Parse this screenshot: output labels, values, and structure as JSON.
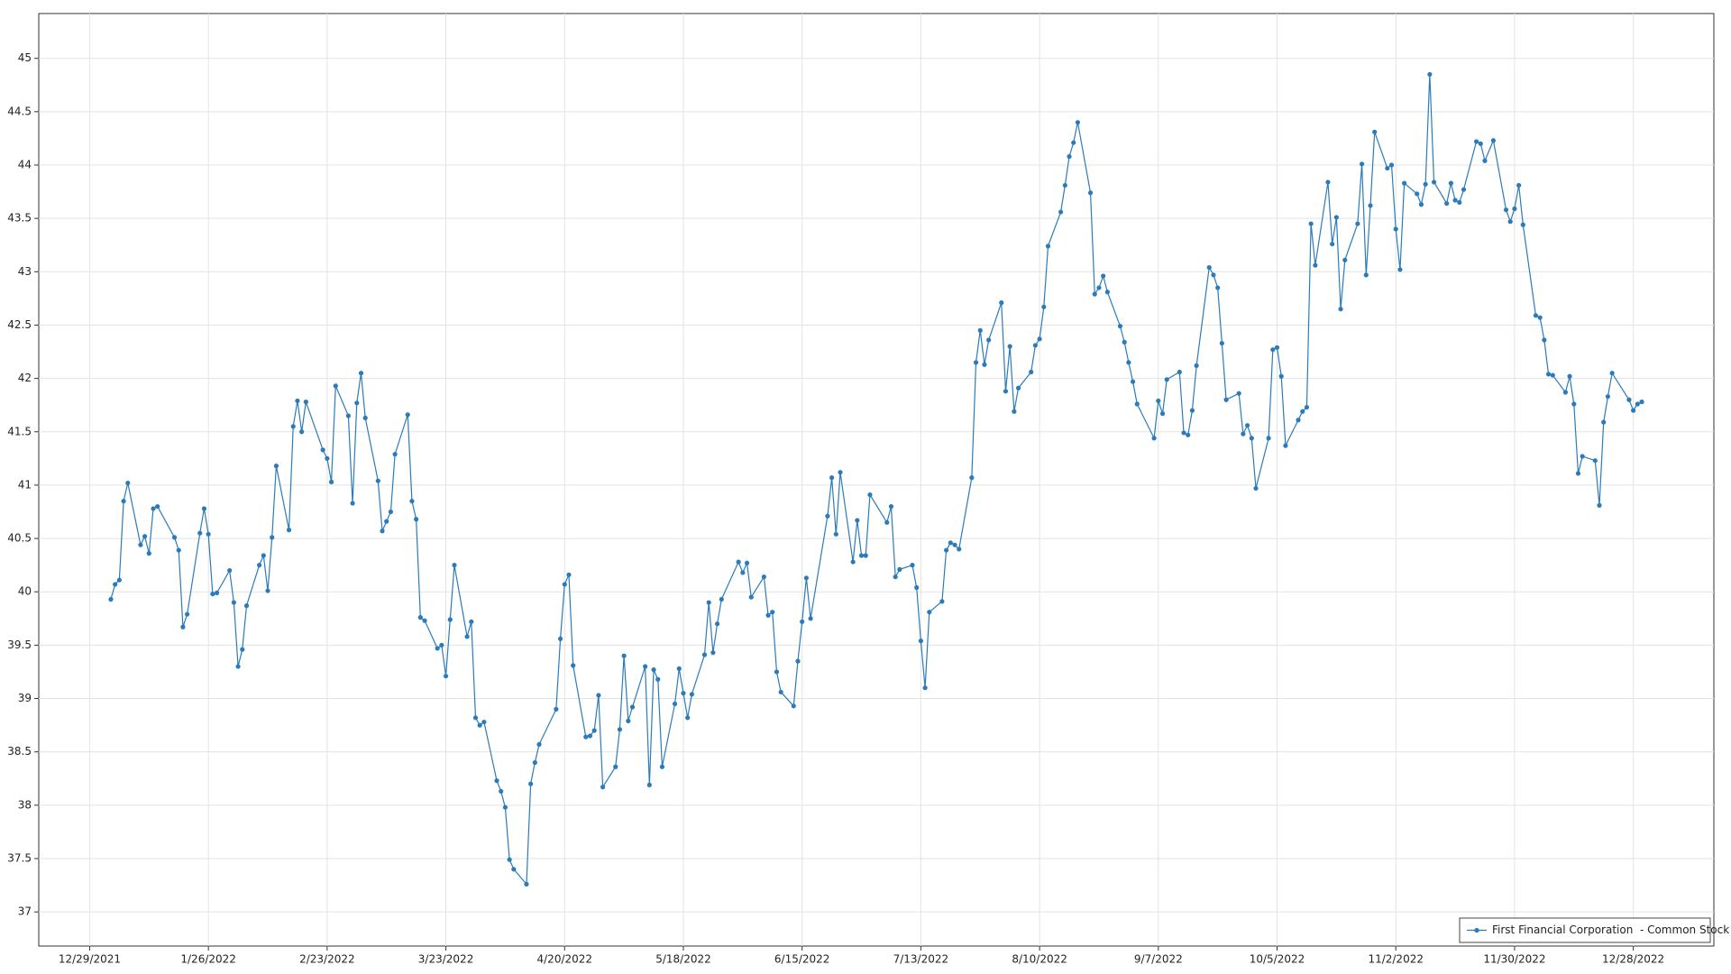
{
  "chart_data": {
    "type": "line",
    "x": [
      "1/3/2022",
      "1/4/2022",
      "1/5/2022",
      "1/6/2022",
      "1/7/2022",
      "1/10/2022",
      "1/11/2022",
      "1/12/2022",
      "1/13/2022",
      "1/14/2022",
      "1/18/2022",
      "1/19/2022",
      "1/20/2022",
      "1/21/2022",
      "1/24/2022",
      "1/25/2022",
      "1/26/2022",
      "1/27/2022",
      "1/28/2022",
      "1/31/2022",
      "2/1/2022",
      "2/2/2022",
      "2/3/2022",
      "2/4/2022",
      "2/7/2022",
      "2/8/2022",
      "2/9/2022",
      "2/10/2022",
      "2/11/2022",
      "2/14/2022",
      "2/15/2022",
      "2/16/2022",
      "2/17/2022",
      "2/18/2022",
      "2/22/2022",
      "2/23/2022",
      "2/24/2022",
      "2/25/2022",
      "2/28/2022",
      "3/1/2022",
      "3/2/2022",
      "3/3/2022",
      "3/4/2022",
      "3/7/2022",
      "3/8/2022",
      "3/9/2022",
      "3/10/2022",
      "3/11/2022",
      "3/14/2022",
      "3/15/2022",
      "3/16/2022",
      "3/17/2022",
      "3/18/2022",
      "3/21/2022",
      "3/22/2022",
      "3/23/2022",
      "3/24/2022",
      "3/25/2022",
      "3/28/2022",
      "3/29/2022",
      "3/30/2022",
      "3/31/2022",
      "4/1/2022",
      "4/4/2022",
      "4/5/2022",
      "4/6/2022",
      "4/7/2022",
      "4/8/2022",
      "4/11/2022",
      "4/12/2022",
      "4/13/2022",
      "4/14/2022",
      "4/18/2022",
      "4/19/2022",
      "4/20/2022",
      "4/21/2022",
      "4/22/2022",
      "4/25/2022",
      "4/26/2022",
      "4/27/2022",
      "4/28/2022",
      "4/29/2022",
      "5/2/2022",
      "5/3/2022",
      "5/4/2022",
      "5/5/2022",
      "5/6/2022",
      "5/9/2022",
      "5/10/2022",
      "5/11/2022",
      "5/12/2022",
      "5/13/2022",
      "5/16/2022",
      "5/17/2022",
      "5/18/2022",
      "5/19/2022",
      "5/20/2022",
      "5/23/2022",
      "5/24/2022",
      "5/25/2022",
      "5/26/2022",
      "5/27/2022",
      "5/31/2022",
      "6/1/2022",
      "6/2/2022",
      "6/3/2022",
      "6/6/2022",
      "6/7/2022",
      "6/8/2022",
      "6/9/2022",
      "6/10/2022",
      "6/13/2022",
      "6/14/2022",
      "6/15/2022",
      "6/16/2022",
      "6/17/2022",
      "6/21/2022",
      "6/22/2022",
      "6/23/2022",
      "6/24/2022",
      "6/27/2022",
      "6/28/2022",
      "6/29/2022",
      "6/30/2022",
      "7/1/2022",
      "7/5/2022",
      "7/6/2022",
      "7/7/2022",
      "7/8/2022",
      "7/11/2022",
      "7/12/2022",
      "7/13/2022",
      "7/14/2022",
      "7/15/2022",
      "7/18/2022",
      "7/19/2022",
      "7/20/2022",
      "7/21/2022",
      "7/22/2022",
      "7/25/2022",
      "7/26/2022",
      "7/27/2022",
      "7/28/2022",
      "7/29/2022",
      "8/1/2022",
      "8/2/2022",
      "8/3/2022",
      "8/4/2022",
      "8/5/2022",
      "8/8/2022",
      "8/9/2022",
      "8/10/2022",
      "8/11/2022",
      "8/12/2022",
      "8/15/2022",
      "8/16/2022",
      "8/17/2022",
      "8/18/2022",
      "8/19/2022",
      "8/22/2022",
      "8/23/2022",
      "8/24/2022",
      "8/25/2022",
      "8/26/2022",
      "8/29/2022",
      "8/30/2022",
      "8/31/2022",
      "9/1/2022",
      "9/2/2022",
      "9/6/2022",
      "9/7/2022",
      "9/8/2022",
      "9/9/2022",
      "9/12/2022",
      "9/13/2022",
      "9/14/2022",
      "9/15/2022",
      "9/16/2022",
      "9/19/2022",
      "9/20/2022",
      "9/21/2022",
      "9/22/2022",
      "9/23/2022",
      "9/26/2022",
      "9/27/2022",
      "9/28/2022",
      "9/29/2022",
      "9/30/2022",
      "10/3/2022",
      "10/4/2022",
      "10/5/2022",
      "10/6/2022",
      "10/7/2022",
      "10/10/2022",
      "10/11/2022",
      "10/12/2022",
      "10/13/2022",
      "10/14/2022",
      "10/17/2022",
      "10/18/2022",
      "10/19/2022",
      "10/20/2022",
      "10/21/2022",
      "10/24/2022",
      "10/25/2022",
      "10/26/2022",
      "10/27/2022",
      "10/28/2022",
      "10/31/2022",
      "11/1/2022",
      "11/2/2022",
      "11/3/2022",
      "11/4/2022",
      "11/7/2022",
      "11/8/2022",
      "11/9/2022",
      "11/10/2022",
      "11/11/2022",
      "11/14/2022",
      "11/15/2022",
      "11/16/2022",
      "11/17/2022",
      "11/18/2022",
      "11/21/2022",
      "11/22/2022",
      "11/23/2022",
      "11/25/2022",
      "11/28/2022",
      "11/29/2022",
      "11/30/2022",
      "12/1/2022",
      "12/2/2022",
      "12/5/2022",
      "12/6/2022",
      "12/7/2022",
      "12/8/2022",
      "12/9/2022",
      "12/12/2022",
      "12/13/2022",
      "12/14/2022",
      "12/15/2022",
      "12/16/2022",
      "12/19/2022",
      "12/20/2022",
      "12/21/2022",
      "12/22/2022",
      "12/23/2022",
      "12/27/2022",
      "12/28/2022",
      "12/29/2022",
      "12/30/2022"
    ],
    "series": [
      {
        "name": "First Financial Corporation  - Common Stock",
        "color": "#2b7bba",
        "values": [
          39.93,
          40.07,
          40.11,
          40.85,
          41.02,
          40.44,
          40.52,
          40.36,
          40.78,
          40.8,
          40.51,
          40.39,
          39.67,
          39.79,
          40.55,
          40.78,
          40.54,
          39.98,
          39.99,
          40.2,
          39.9,
          39.3,
          39.46,
          39.87,
          40.25,
          40.34,
          40.01,
          40.51,
          41.18,
          40.58,
          41.55,
          41.79,
          41.5,
          41.78,
          41.33,
          41.25,
          41.03,
          41.93,
          41.65,
          40.83,
          41.77,
          42.05,
          41.63,
          41.04,
          40.57,
          40.66,
          40.75,
          41.29,
          41.66,
          40.85,
          40.68,
          39.76,
          39.73,
          39.47,
          39.5,
          39.21,
          39.74,
          40.25,
          39.58,
          39.72,
          38.82,
          38.75,
          38.78,
          38.23,
          38.13,
          37.98,
          37.49,
          37.4,
          37.26,
          38.2,
          38.4,
          38.57,
          38.9,
          39.56,
          40.07,
          40.16,
          39.31,
          38.64,
          38.65,
          38.7,
          39.03,
          38.17,
          38.36,
          38.71,
          39.4,
          38.79,
          38.92,
          39.3,
          38.19,
          39.27,
          39.18,
          38.36,
          38.95,
          39.28,
          39.05,
          38.82,
          39.04,
          39.41,
          39.9,
          39.43,
          39.7,
          39.93,
          40.28,
          40.18,
          40.27,
          39.95,
          40.14,
          39.78,
          39.81,
          39.25,
          39.06,
          38.93,
          39.35,
          39.72,
          40.13,
          39.75,
          40.71,
          41.07,
          40.54,
          41.12,
          40.28,
          40.67,
          40.34,
          40.34,
          40.91,
          40.65,
          40.8,
          40.14,
          40.21,
          40.25,
          40.04,
          39.54,
          39.1,
          39.81,
          39.91,
          40.39,
          40.46,
          40.44,
          40.4,
          41.07,
          42.15,
          42.45,
          42.13,
          42.36,
          42.71,
          41.88,
          42.3,
          41.69,
          41.91,
          42.06,
          42.31,
          42.37,
          42.67,
          43.24,
          43.56,
          43.81,
          44.08,
          44.21,
          44.4,
          43.74,
          42.79,
          42.85,
          42.96,
          42.81,
          42.49,
          42.34,
          42.15,
          41.97,
          41.76,
          41.44,
          41.79,
          41.67,
          41.99,
          42.06,
          41.49,
          41.47,
          41.7,
          42.12,
          43.04,
          42.97,
          42.85,
          42.33,
          41.8,
          41.86,
          41.48,
          41.56,
          41.44,
          40.97,
          41.44,
          42.27,
          42.29,
          42.02,
          41.37,
          41.61,
          41.69,
          41.73,
          43.45,
          43.06,
          43.84,
          43.26,
          43.51,
          42.65,
          43.11,
          43.45,
          44.01,
          42.97,
          43.62,
          44.31,
          43.97,
          44.0,
          43.4,
          43.02,
          43.83,
          43.73,
          43.63,
          43.82,
          44.85,
          43.84,
          43.64,
          43.83,
          43.67,
          43.65,
          43.77,
          44.22,
          44.2,
          44.04,
          44.23,
          43.58,
          43.47,
          43.59,
          43.81,
          43.44,
          42.59,
          42.57,
          42.36,
          42.04,
          42.03,
          41.87,
          42.02,
          41.76,
          41.11,
          41.27,
          41.23,
          40.81,
          41.59,
          41.83,
          42.05,
          41.8,
          41.7,
          41.76,
          41.78
        ]
      }
    ],
    "xlim": [
      "12/17/2021",
      "1/16/2023"
    ],
    "xticks": [
      "12/29/2021",
      "1/26/2022",
      "2/23/2022",
      "3/23/2022",
      "4/20/2022",
      "5/18/2022",
      "6/15/2022",
      "7/13/2022",
      "8/10/2022",
      "9/7/2022",
      "10/5/2022",
      "11/2/2022",
      "11/30/2022",
      "12/28/2022"
    ],
    "ylim": [
      36.68,
      45.42
    ],
    "yticks": [
      37,
      37.5,
      38,
      38.5,
      39,
      39.5,
      40,
      40.5,
      41,
      41.5,
      42,
      42.5,
      43,
      43.5,
      44,
      44.5,
      45
    ],
    "grid": true,
    "legend": "lower right"
  }
}
